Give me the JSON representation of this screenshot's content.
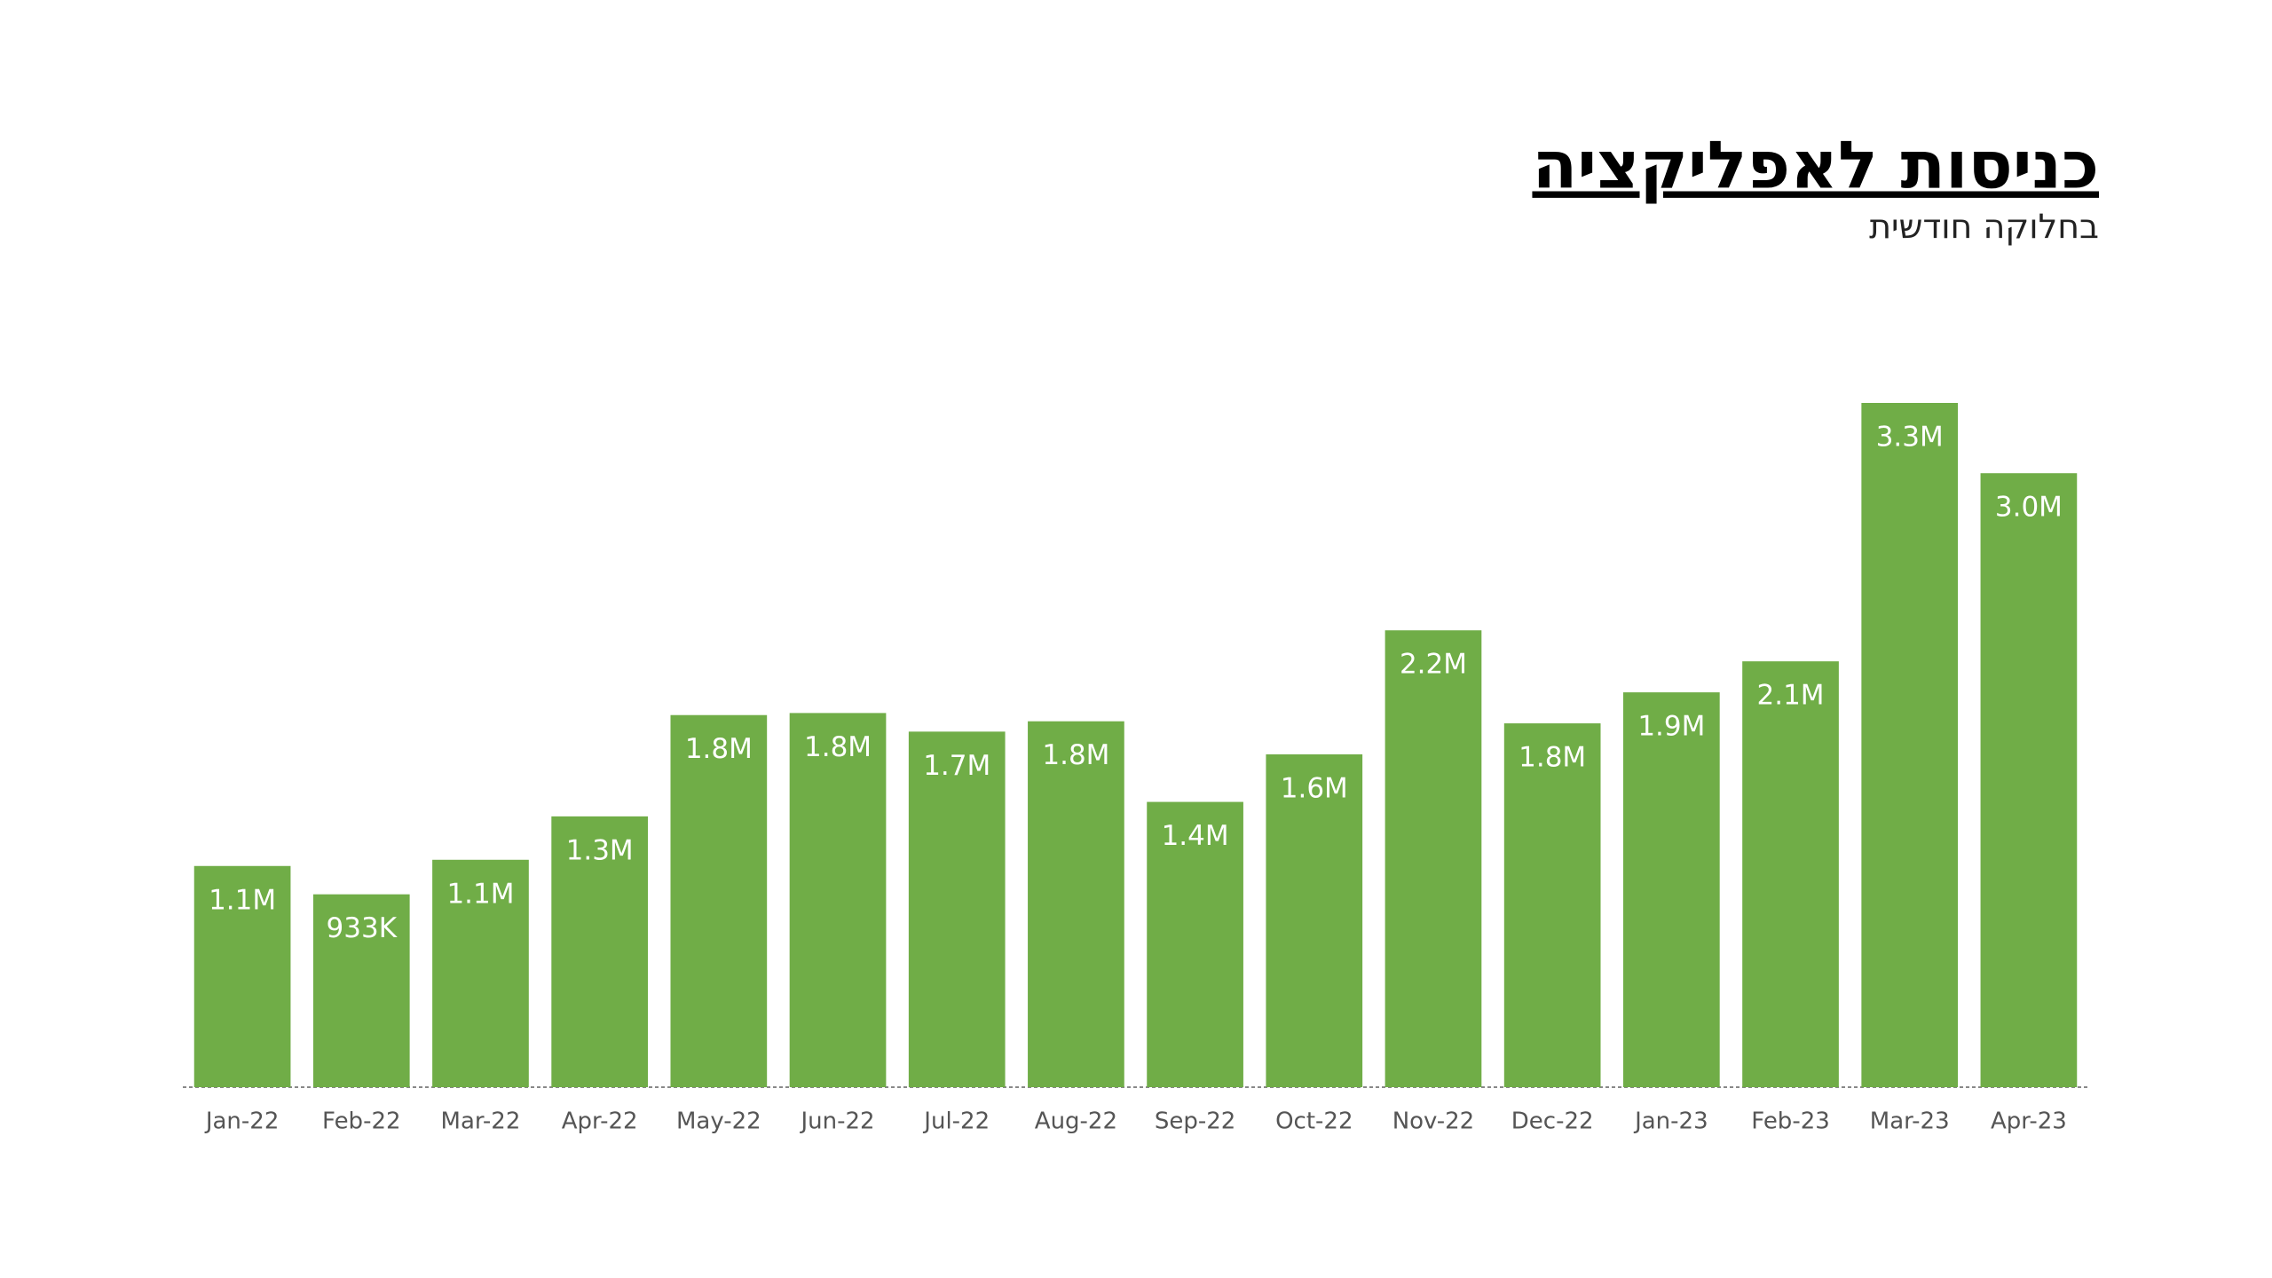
{
  "chart_data": {
    "type": "bar",
    "title": "כניסות לאפליקציה",
    "subtitle": "בחלוקה חודשית",
    "categories": [
      "Jan-22",
      "Feb-22",
      "Mar-22",
      "Apr-22",
      "May-22",
      "Jun-22",
      "Jul-22",
      "Aug-22",
      "Sep-22",
      "Oct-22",
      "Nov-22",
      "Dec-22",
      "Jan-23",
      "Feb-23",
      "Mar-23",
      "Apr-23"
    ],
    "values": [
      1070000,
      933000,
      1100000,
      1310000,
      1800000,
      1810000,
      1720000,
      1770000,
      1380000,
      1610000,
      2210000,
      1760000,
      1910000,
      2060000,
      3310000,
      2970000
    ],
    "value_labels": [
      "1.1M",
      "933K",
      "1.1M",
      "1.3M",
      "1.8M",
      "1.8M",
      "1.7M",
      "1.8M",
      "1.4M",
      "1.6M",
      "2.2M",
      "1.8M",
      "1.9M",
      "2.1M",
      "3.3M",
      "3.0M"
    ],
    "color": "#70ad47"
  }
}
